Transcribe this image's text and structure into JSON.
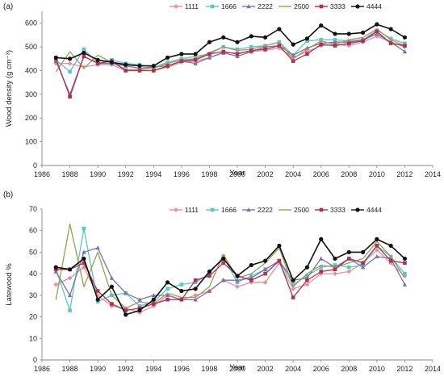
{
  "figure": {
    "panels": [
      {
        "label": "(a)"
      },
      {
        "label": "(b)"
      }
    ]
  },
  "chart_data": [
    {
      "type": "line",
      "panel": "(a)",
      "xlabel": "Year",
      "ylabel": "Wood density (g cm⁻³)",
      "xlim": [
        1986,
        2014
      ],
      "ylim": [
        0,
        650
      ],
      "xticks": [
        1986,
        1988,
        1990,
        1992,
        1994,
        1996,
        1998,
        2000,
        2002,
        2004,
        2006,
        2008,
        2010,
        2012,
        2014
      ],
      "yticks": [
        0,
        100,
        200,
        300,
        400,
        500,
        600
      ],
      "grid": false,
      "legend_position": "top-center",
      "x": [
        1987,
        1988,
        1989,
        1990,
        1991,
        1992,
        1993,
        1994,
        1995,
        1996,
        1997,
        1998,
        1999,
        2000,
        2001,
        2002,
        2003,
        2004,
        2005,
        2006,
        2007,
        2008,
        2009,
        2010,
        2011,
        2012
      ],
      "series": [
        {
          "name": "1111",
          "color": "#e88fa0",
          "marker": "diamond",
          "values": [
            430,
            430,
            415,
            425,
            425,
            400,
            400,
            400,
            415,
            435,
            440,
            455,
            475,
            475,
            480,
            485,
            495,
            455,
            480,
            505,
            510,
            505,
            520,
            545,
            520,
            500
          ]
        },
        {
          "name": "1666",
          "color": "#5bc8c8",
          "marker": "square",
          "values": [
            445,
            395,
            490,
            430,
            445,
            430,
            425,
            415,
            435,
            450,
            460,
            470,
            500,
            490,
            500,
            505,
            520,
            465,
            525,
            530,
            530,
            525,
            530,
            570,
            535,
            515
          ]
        },
        {
          "name": "2222",
          "color": "#7a73b0",
          "marker": "triangle",
          "values": [
            440,
            300,
            460,
            430,
            430,
            420,
            410,
            415,
            420,
            440,
            430,
            455,
            475,
            460,
            480,
            500,
            505,
            465,
            495,
            515,
            520,
            520,
            530,
            555,
            520,
            480
          ]
        },
        {
          "name": "2500",
          "color": "#9aa050",
          "marker": "none",
          "values": [
            395,
            480,
            410,
            465,
            435,
            405,
            405,
            410,
            430,
            445,
            450,
            475,
            500,
            485,
            490,
            505,
            520,
            450,
            490,
            525,
            510,
            530,
            540,
            575,
            530,
            505
          ]
        },
        {
          "name": "3333",
          "color": "#b03050",
          "marker": "square",
          "values": [
            450,
            290,
            460,
            430,
            440,
            400,
            400,
            400,
            420,
            440,
            445,
            470,
            480,
            470,
            485,
            490,
            505,
            440,
            470,
            510,
            505,
            515,
            525,
            565,
            515,
            505
          ]
        },
        {
          "name": "4444",
          "color": "#111111",
          "marker": "circle",
          "values": [
            455,
            450,
            475,
            445,
            435,
            425,
            420,
            420,
            455,
            470,
            470,
            520,
            540,
            520,
            545,
            540,
            575,
            510,
            535,
            590,
            555,
            555,
            560,
            595,
            575,
            540
          ]
        }
      ]
    },
    {
      "type": "line",
      "panel": "(b)",
      "xlabel": "Year",
      "ylabel": "Latewood %",
      "xlim": [
        1986,
        2014
      ],
      "ylim": [
        0,
        70
      ],
      "xticks": [
        1986,
        1988,
        1990,
        1992,
        1994,
        1996,
        1998,
        2000,
        2002,
        2004,
        2006,
        2008,
        2010,
        2012,
        2014
      ],
      "yticks": [
        0,
        10,
        20,
        30,
        40,
        50,
        60,
        70
      ],
      "grid": false,
      "legend_position": "top-center",
      "x": [
        1987,
        1988,
        1989,
        1990,
        1991,
        1992,
        1993,
        1994,
        1995,
        1996,
        1997,
        1998,
        1999,
        2000,
        2001,
        2002,
        2003,
        2004,
        2005,
        2006,
        2007,
        2008,
        2009,
        2010,
        2011,
        2012
      ],
      "series": [
        {
          "name": "1111",
          "color": "#e88fa0",
          "marker": "diamond",
          "values": [
            35,
            38,
            43,
            30,
            25,
            24,
            22,
            25,
            30,
            28,
            30,
            32,
            37,
            34,
            36,
            36,
            45,
            33,
            35,
            40,
            40,
            41,
            45,
            51,
            45,
            39
          ]
        },
        {
          "name": "1666",
          "color": "#5bc8c8",
          "marker": "square",
          "values": [
            42,
            23,
            61,
            27,
            30,
            31,
            25,
            27,
            33,
            35,
            36,
            40,
            48,
            36,
            39,
            42,
            46,
            35,
            39,
            43,
            44,
            43,
            44,
            53,
            48,
            40
          ]
        },
        {
          "name": "2222",
          "color": "#7a73b0",
          "marker": "triangle",
          "values": [
            41,
            30,
            50,
            52,
            38,
            31,
            28,
            30,
            30,
            28,
            28,
            32,
            37,
            37,
            38,
            42,
            46,
            37,
            38,
            47,
            43,
            47,
            43,
            48,
            47,
            35
          ]
        },
        {
          "name": "2500",
          "color": "#9aa050",
          "marker": "none",
          "values": [
            28,
            63,
            34,
            50,
            30,
            24,
            27,
            26,
            31,
            29,
            29,
            34,
            49,
            38,
            40,
            45,
            52,
            34,
            40,
            44,
            43,
            45,
            47,
            55,
            48,
            38
          ]
        },
        {
          "name": "3333",
          "color": "#b03050",
          "marker": "square",
          "values": [
            42,
            42,
            45,
            32,
            26,
            23,
            24,
            26,
            28,
            28,
            37,
            39,
            45,
            39,
            37,
            40,
            46,
            29,
            37,
            41,
            42,
            47,
            45,
            53,
            46,
            45
          ]
        },
        {
          "name": "4444",
          "color": "#111111",
          "marker": "circle",
          "values": [
            43,
            42,
            47,
            28,
            34,
            21,
            23,
            28,
            36,
            32,
            33,
            41,
            47,
            39,
            44,
            46,
            53,
            37,
            43,
            56,
            47,
            50,
            50,
            56,
            53,
            47
          ]
        }
      ]
    }
  ]
}
